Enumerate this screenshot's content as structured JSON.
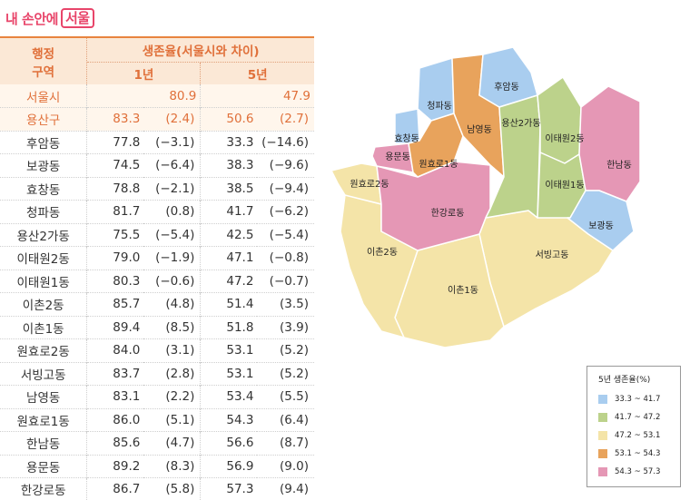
{
  "brand": {
    "prefix": "내 손안에",
    "boxed": "서울"
  },
  "table": {
    "header_district": "행정\n구역",
    "header_group": "생존율(서울시와 차이)",
    "header_year1": "1년",
    "header_year5": "5년",
    "city": {
      "name": "서울시",
      "y1": "80.9",
      "y5": "47.9"
    },
    "rows": [
      {
        "name": "용산구",
        "y1": "83.3",
        "d1": "(2.4)",
        "y5": "50.6",
        "d5": "(2.7)"
      },
      {
        "name": "후암동",
        "y1": "77.8",
        "d1": "(−3.1)",
        "y5": "33.3",
        "d5": "(−14.6)"
      },
      {
        "name": "보광동",
        "y1": "74.5",
        "d1": "(−6.4)",
        "y5": "38.3",
        "d5": "(−9.6)"
      },
      {
        "name": "효창동",
        "y1": "78.8",
        "d1": "(−2.1)",
        "y5": "38.5",
        "d5": "(−9.4)"
      },
      {
        "name": "청파동",
        "y1": "81.7",
        "d1": "(0.8)",
        "y5": "41.7",
        "d5": "(−6.2)"
      },
      {
        "name": "용산2가동",
        "y1": "75.5",
        "d1": "(−5.4)",
        "y5": "42.5",
        "d5": "(−5.4)"
      },
      {
        "name": "이태원2동",
        "y1": "79.0",
        "d1": "(−1.9)",
        "y5": "47.1",
        "d5": "(−0.8)"
      },
      {
        "name": "이태원1동",
        "y1": "80.3",
        "d1": "(−0.6)",
        "y5": "47.2",
        "d5": "(−0.7)"
      },
      {
        "name": "이촌2동",
        "y1": "85.7",
        "d1": "(4.8)",
        "y5": "51.4",
        "d5": "(3.5)"
      },
      {
        "name": "이촌1동",
        "y1": "89.4",
        "d1": "(8.5)",
        "y5": "51.8",
        "d5": "(3.9)"
      },
      {
        "name": "원효로2동",
        "y1": "84.0",
        "d1": "(3.1)",
        "y5": "53.1",
        "d5": "(5.2)"
      },
      {
        "name": "서빙고동",
        "y1": "83.7",
        "d1": "(2.8)",
        "y5": "53.1",
        "d5": "(5.2)"
      },
      {
        "name": "남영동",
        "y1": "83.1",
        "d1": "(2.2)",
        "y5": "53.4",
        "d5": "(5.5)"
      },
      {
        "name": "원효로1동",
        "y1": "86.0",
        "d1": "(5.1)",
        "y5": "54.3",
        "d5": "(6.4)"
      },
      {
        "name": "한남동",
        "y1": "85.6",
        "d1": "(4.7)",
        "y5": "56.6",
        "d5": "(8.7)"
      },
      {
        "name": "용문동",
        "y1": "89.2",
        "d1": "(8.3)",
        "y5": "56.9",
        "d5": "(9.0)"
      },
      {
        "name": "한강로동",
        "y1": "86.7",
        "d1": "(5.8)",
        "y5": "57.3",
        "d5": "(9.4)"
      }
    ]
  },
  "map": {
    "regions": {
      "huam": {
        "label": "후암동",
        "color": "#a9cdef"
      },
      "cheongpa": {
        "label": "청파동",
        "color": "#a9cdef"
      },
      "hyochang": {
        "label": "효창동",
        "color": "#a9cdef"
      },
      "bogwang": {
        "label": "보광동",
        "color": "#a9cdef"
      },
      "namyeong": {
        "label": "남영동",
        "color": "#e8a35c"
      },
      "wonhyoro1": {
        "label": "원효로1동",
        "color": "#e8a35c"
      },
      "yongsan2ga": {
        "label": "용산2가동",
        "color": "#bcd28b"
      },
      "itaewon2": {
        "label": "이태원2동",
        "color": "#bcd28b"
      },
      "itaewon1": {
        "label": "이태원1동",
        "color": "#bcd28b"
      },
      "yongmun": {
        "label": "용문동",
        "color": "#e597b5"
      },
      "hannam": {
        "label": "한남동",
        "color": "#e597b5"
      },
      "hangangro": {
        "label": "한강로동",
        "color": "#e597b5"
      },
      "wonhyoro2": {
        "label": "원효로2동",
        "color": "#f4e4a8"
      },
      "ichon2": {
        "label": "이촌2동",
        "color": "#f4e4a8"
      },
      "ichon1": {
        "label": "이촌1동",
        "color": "#f4e4a8"
      },
      "seobinggo": {
        "label": "서빙고동",
        "color": "#f4e4a8"
      }
    }
  },
  "legend": {
    "title": "5년 생존율(%)",
    "items": [
      {
        "label": "33.3 ~ 41.7",
        "color": "#a9cdef"
      },
      {
        "label": "41.7 ~ 47.2",
        "color": "#bcd28b"
      },
      {
        "label": "47.2 ~ 53.1",
        "color": "#f4e4a8"
      },
      {
        "label": "53.1 ~ 54.3",
        "color": "#e8a35c"
      },
      {
        "label": "54.3 ~ 57.3",
        "color": "#e597b5"
      }
    ]
  }
}
